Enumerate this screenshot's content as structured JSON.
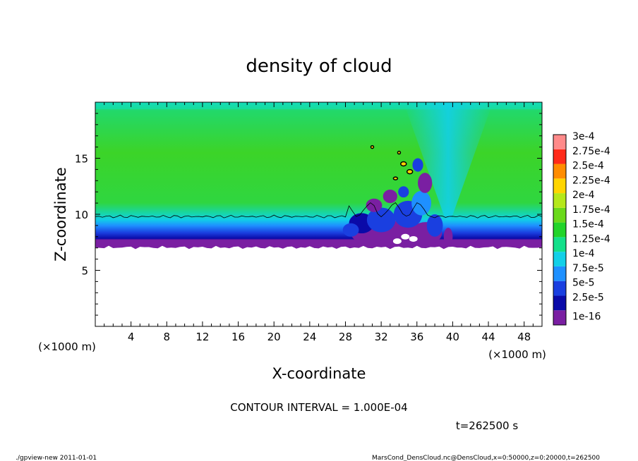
{
  "chart_data": {
    "type": "heatmap",
    "title": "density of cloud",
    "xlabel": "X-coordinate",
    "ylabel": "Z-coordinate",
    "x_unit_left": "(×1000 m)",
    "x_unit_right": "(×1000 m)",
    "xlim": [
      0,
      50
    ],
    "ylim": [
      0,
      20
    ],
    "x_ticks": [
      "4",
      "8",
      "12",
      "16",
      "20",
      "24",
      "28",
      "32",
      "36",
      "40",
      "44",
      "48"
    ],
    "y_ticks": [
      "5",
      "10",
      "15"
    ],
    "contour_interval": "CONTOUR INTERVAL = 1.000E-04",
    "time_label": "t=262500 s",
    "legend": {
      "placement": "right",
      "levels": [
        "1e-16",
        "2.5e-5",
        "5e-5",
        "7.5e-5",
        "1e-4",
        "1.25e-4",
        "1.5e-4",
        "1.75e-4",
        "2e-4",
        "2.25e-4",
        "2.5e-4",
        "2.75e-4",
        "3e-4"
      ],
      "colors": [
        "#7a1fa2",
        "#0a0aa8",
        "#1a3fe0",
        "#1e90ff",
        "#12d0e8",
        "#13e08a",
        "#22d42a",
        "#6ad91a",
        "#b5e81a",
        "#ffd500",
        "#ff8c00",
        "#ff2a1a",
        "#ff8a8a"
      ]
    },
    "cloud_layer": {
      "z_bottom": 7.2,
      "z_mid_contour": 9.8,
      "z_top": 19.8
    },
    "disturbed_region": {
      "x_start": 28,
      "x_end": 41,
      "trough_x": 39.5
    }
  },
  "footer": {
    "left": "./gpview-new   2011-01-01",
    "right": "MarsCond_DensCloud.nc@DensCloud,x=0:50000,z=0:20000,t=262500"
  }
}
